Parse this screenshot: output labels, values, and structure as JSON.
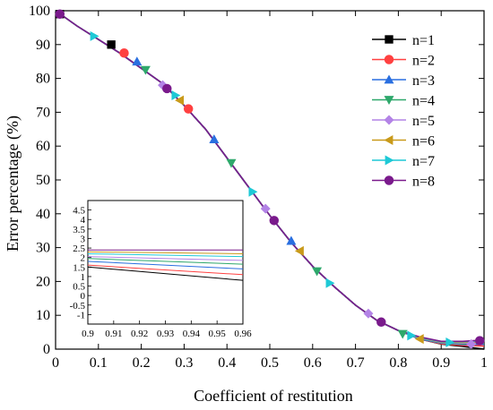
{
  "chart_data": {
    "type": "line",
    "title": "",
    "xlabel": "Coefficient of restitution",
    "ylabel": "Error percentage (%)",
    "xlim": [
      0,
      1
    ],
    "ylim": [
      0,
      100
    ],
    "xticks": [
      0,
      0.1,
      0.2,
      0.3,
      0.4,
      0.5,
      0.6,
      0.7,
      0.8,
      0.9,
      1
    ],
    "yticks": [
      0,
      10,
      20,
      30,
      40,
      50,
      60,
      70,
      80,
      90,
      100
    ],
    "xtick_labels": [
      "0",
      "0.1",
      "0.2",
      "0.3",
      "0.4",
      "0.5",
      "0.6",
      "0.7",
      "0.8",
      "0.9",
      "1"
    ],
    "ytick_labels": [
      "0",
      "10",
      "20",
      "30",
      "40",
      "50",
      "60",
      "70",
      "80",
      "90",
      "100"
    ],
    "grid": false,
    "legend_position": "top-right",
    "series": [
      {
        "name": "n=1",
        "color": "#000000",
        "marker": "square",
        "curve": [
          [
            0,
            100
          ],
          [
            0.05,
            95.5
          ],
          [
            0.1,
            91.5
          ],
          [
            0.15,
            87.5
          ],
          [
            0.2,
            83
          ],
          [
            0.25,
            78.5
          ],
          [
            0.3,
            72
          ],
          [
            0.35,
            65
          ],
          [
            0.4,
            56.5
          ],
          [
            0.45,
            48
          ],
          [
            0.5,
            39.5
          ],
          [
            0.55,
            31.5
          ],
          [
            0.6,
            24.5
          ],
          [
            0.65,
            18.5
          ],
          [
            0.7,
            13
          ],
          [
            0.75,
            8.5
          ],
          [
            0.8,
            5.5
          ],
          [
            0.85,
            3
          ],
          [
            0.9,
            1.5
          ],
          [
            0.95,
            0.8
          ],
          [
            1,
            0
          ]
        ],
        "markers": [
          [
            0.01,
            99
          ],
          [
            0.13,
            90
          ]
        ]
      },
      {
        "name": "n=2",
        "color": "#ff4040",
        "marker": "circle",
        "curve": [
          [
            0,
            100
          ],
          [
            0.05,
            95.5
          ],
          [
            0.1,
            91.5
          ],
          [
            0.15,
            87.5
          ],
          [
            0.2,
            83
          ],
          [
            0.25,
            78.5
          ],
          [
            0.3,
            72
          ],
          [
            0.35,
            65
          ],
          [
            0.4,
            56.5
          ],
          [
            0.45,
            48
          ],
          [
            0.5,
            39.5
          ],
          [
            0.55,
            31.5
          ],
          [
            0.6,
            24.5
          ],
          [
            0.65,
            18.5
          ],
          [
            0.7,
            13
          ],
          [
            0.75,
            8.5
          ],
          [
            0.8,
            5.5
          ],
          [
            0.85,
            3
          ],
          [
            0.9,
            1.6
          ],
          [
            0.95,
            1.1
          ],
          [
            1,
            0.9
          ]
        ],
        "markers": [
          [
            0.16,
            87.5
          ],
          [
            0.31,
            71
          ]
        ]
      },
      {
        "name": "n=3",
        "color": "#2a6fe0",
        "marker": "triangle-up",
        "curve": [
          [
            0,
            100
          ],
          [
            0.05,
            95.5
          ],
          [
            0.1,
            91.5
          ],
          [
            0.15,
            87.5
          ],
          [
            0.2,
            83
          ],
          [
            0.25,
            78.5
          ],
          [
            0.3,
            72
          ],
          [
            0.35,
            65
          ],
          [
            0.4,
            56.5
          ],
          [
            0.45,
            48
          ],
          [
            0.5,
            39.5
          ],
          [
            0.55,
            31.5
          ],
          [
            0.6,
            24.5
          ],
          [
            0.65,
            18.5
          ],
          [
            0.7,
            13
          ],
          [
            0.75,
            8.5
          ],
          [
            0.8,
            5.5
          ],
          [
            0.85,
            3
          ],
          [
            0.9,
            1.8
          ],
          [
            0.95,
            1.4
          ],
          [
            1,
            1.4
          ]
        ],
        "markers": [
          [
            0.19,
            85
          ],
          [
            0.37,
            62
          ],
          [
            0.55,
            32
          ]
        ]
      },
      {
        "name": "n=4",
        "color": "#2ea86b",
        "marker": "triangle-down",
        "curve": [
          [
            0,
            100
          ],
          [
            0.05,
            95.5
          ],
          [
            0.1,
            91.5
          ],
          [
            0.15,
            87.5
          ],
          [
            0.2,
            83
          ],
          [
            0.25,
            78.5
          ],
          [
            0.3,
            72
          ],
          [
            0.35,
            65
          ],
          [
            0.4,
            56.5
          ],
          [
            0.45,
            48
          ],
          [
            0.5,
            39.5
          ],
          [
            0.55,
            31.5
          ],
          [
            0.6,
            24.5
          ],
          [
            0.65,
            18.5
          ],
          [
            0.7,
            13
          ],
          [
            0.75,
            8.5
          ],
          [
            0.8,
            5.5
          ],
          [
            0.85,
            3.2
          ],
          [
            0.9,
            1.9
          ],
          [
            0.95,
            1.6
          ],
          [
            1,
            1.7
          ]
        ],
        "markers": [
          [
            0.21,
            82.5
          ],
          [
            0.41,
            55
          ],
          [
            0.61,
            23
          ],
          [
            0.81,
            4.5
          ]
        ]
      },
      {
        "name": "n=5",
        "color": "#b383e6",
        "marker": "diamond",
        "curve": [
          [
            0,
            100
          ],
          [
            0.05,
            95.5
          ],
          [
            0.1,
            91.5
          ],
          [
            0.15,
            87.5
          ],
          [
            0.2,
            83
          ],
          [
            0.25,
            78.5
          ],
          [
            0.3,
            72
          ],
          [
            0.35,
            65
          ],
          [
            0.4,
            56.5
          ],
          [
            0.45,
            48
          ],
          [
            0.5,
            39.5
          ],
          [
            0.55,
            31.5
          ],
          [
            0.6,
            24.5
          ],
          [
            0.65,
            18.5
          ],
          [
            0.7,
            13
          ],
          [
            0.75,
            8.5
          ],
          [
            0.8,
            5.5
          ],
          [
            0.85,
            3.3
          ],
          [
            0.9,
            2
          ],
          [
            0.95,
            1.8
          ],
          [
            1,
            2
          ]
        ],
        "markers": [
          [
            0.25,
            78
          ],
          [
            0.49,
            41.5
          ],
          [
            0.73,
            10.5
          ],
          [
            0.97,
            1.5
          ]
        ]
      },
      {
        "name": "n=6",
        "color": "#c99a1a",
        "marker": "triangle-left",
        "curve": [
          [
            0,
            100
          ],
          [
            0.05,
            95.5
          ],
          [
            0.1,
            91.5
          ],
          [
            0.15,
            87.5
          ],
          [
            0.2,
            83
          ],
          [
            0.25,
            78.5
          ],
          [
            0.3,
            72
          ],
          [
            0.35,
            65
          ],
          [
            0.4,
            56.5
          ],
          [
            0.45,
            48
          ],
          [
            0.5,
            39.5
          ],
          [
            0.55,
            31.5
          ],
          [
            0.6,
            24.5
          ],
          [
            0.65,
            18.5
          ],
          [
            0.7,
            13
          ],
          [
            0.75,
            8.5
          ],
          [
            0.8,
            5.5
          ],
          [
            0.85,
            3.4
          ],
          [
            0.9,
            2.1
          ],
          [
            0.95,
            2
          ],
          [
            1,
            2.2
          ]
        ],
        "markers": [
          [
            0.29,
            73.5
          ],
          [
            0.57,
            29
          ],
          [
            0.85,
            3
          ]
        ]
      },
      {
        "name": "n=7",
        "color": "#1ec9d6",
        "marker": "triangle-right",
        "curve": [
          [
            0,
            100
          ],
          [
            0.05,
            95.5
          ],
          [
            0.1,
            91.5
          ],
          [
            0.15,
            87.5
          ],
          [
            0.2,
            83
          ],
          [
            0.25,
            78.5
          ],
          [
            0.3,
            72
          ],
          [
            0.35,
            65
          ],
          [
            0.4,
            56.5
          ],
          [
            0.45,
            48
          ],
          [
            0.5,
            39.5
          ],
          [
            0.55,
            31.5
          ],
          [
            0.6,
            24.5
          ],
          [
            0.65,
            18.5
          ],
          [
            0.7,
            13
          ],
          [
            0.75,
            8.5
          ],
          [
            0.8,
            5.5
          ],
          [
            0.85,
            3.5
          ],
          [
            0.9,
            2.2
          ],
          [
            0.95,
            2.2
          ],
          [
            1,
            2.5
          ]
        ],
        "markers": [
          [
            0.09,
            92.5
          ],
          [
            0.28,
            75
          ],
          [
            0.46,
            46.5
          ],
          [
            0.64,
            19.5
          ],
          [
            0.83,
            4
          ],
          [
            0.92,
            2
          ]
        ]
      },
      {
        "name": "n=8",
        "color": "#7a1a8c",
        "marker": "circle-filled",
        "curve": [
          [
            0,
            100
          ],
          [
            0.05,
            95.5
          ],
          [
            0.1,
            91.5
          ],
          [
            0.15,
            87.5
          ],
          [
            0.2,
            83
          ],
          [
            0.25,
            78.5
          ],
          [
            0.3,
            72
          ],
          [
            0.35,
            65
          ],
          [
            0.4,
            56.5
          ],
          [
            0.45,
            48
          ],
          [
            0.5,
            39.5
          ],
          [
            0.55,
            31.5
          ],
          [
            0.6,
            24.5
          ],
          [
            0.65,
            18.5
          ],
          [
            0.7,
            13
          ],
          [
            0.75,
            8.5
          ],
          [
            0.8,
            5.5
          ],
          [
            0.85,
            3.6
          ],
          [
            0.9,
            2.3
          ],
          [
            0.95,
            2.3
          ],
          [
            1,
            2.7
          ]
        ],
        "markers": [
          [
            0.01,
            99
          ],
          [
            0.26,
            77
          ],
          [
            0.51,
            38
          ],
          [
            0.76,
            8
          ],
          [
            0.99,
            2.5
          ]
        ]
      }
    ],
    "inset": {
      "xlim": [
        0.9,
        0.96
      ],
      "ylim": [
        -1.5,
        5
      ],
      "xticks": [
        0.9,
        0.91,
        0.92,
        0.93,
        0.94,
        0.95,
        0.96
      ],
      "yticks": [
        -1,
        -0.5,
        0,
        0.5,
        1,
        1.5,
        2,
        2.5,
        3,
        3.5,
        4,
        4.5
      ],
      "xtick_labels": [
        "0.9",
        "0.91",
        "0.92",
        "0.93",
        "0.94",
        "0.95",
        "0.96"
      ],
      "ytick_labels": [
        "-1",
        "-0.5",
        "0",
        "0.5",
        "1",
        "1.5",
        "2",
        "2.5",
        "3",
        "3.5",
        "4",
        "4.5"
      ],
      "series": [
        {
          "color": "#000000",
          "values": [
            1.5,
            0.8
          ]
        },
        {
          "color": "#ff4040",
          "values": [
            1.6,
            1.1
          ]
        },
        {
          "color": "#2a6fe0",
          "values": [
            1.8,
            1.4
          ]
        },
        {
          "color": "#2ea86b",
          "values": [
            1.95,
            1.65
          ]
        },
        {
          "color": "#b383e6",
          "values": [
            2.05,
            1.85
          ]
        },
        {
          "color": "#1ec9d6",
          "values": [
            2.2,
            2.05
          ]
        },
        {
          "color": "#c99a1a",
          "values": [
            2.3,
            2.2
          ]
        },
        {
          "color": "#7a1a8c",
          "values": [
            2.4,
            2.4
          ]
        }
      ]
    }
  }
}
